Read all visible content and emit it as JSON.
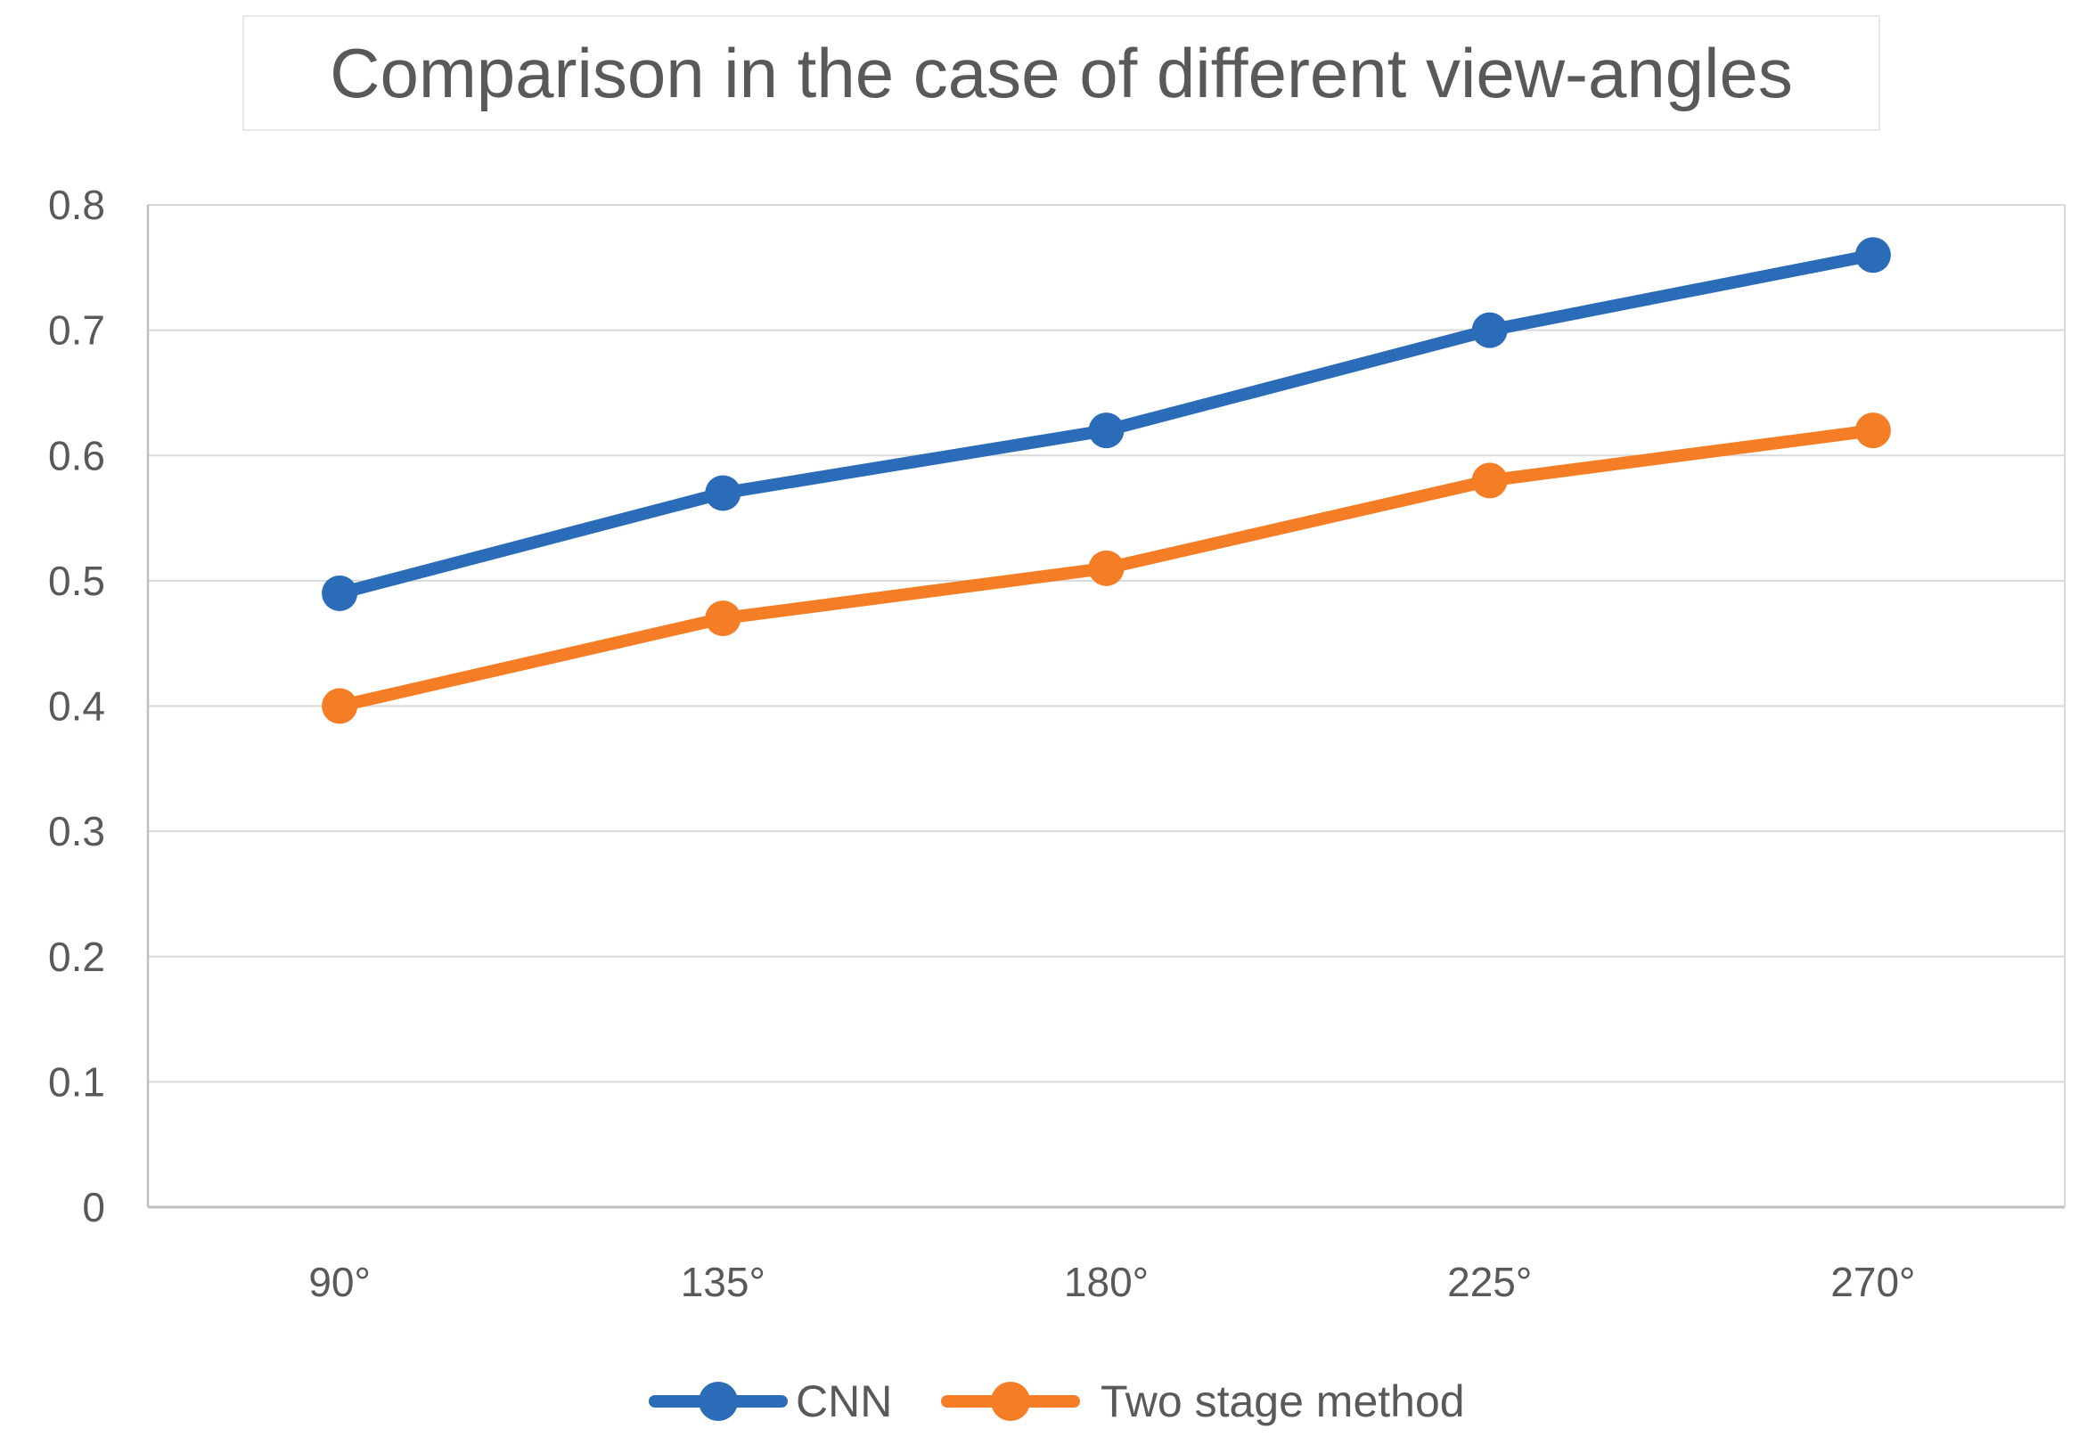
{
  "chart_data": {
    "type": "line",
    "title": "Comparison in the case of different view-angles",
    "categories": [
      "90°",
      "135°",
      "180°",
      "225°",
      "270°"
    ],
    "series": [
      {
        "name": "CNN",
        "color": "#2a6cb8",
        "values": [
          0.49,
          0.57,
          0.62,
          0.7,
          0.76
        ]
      },
      {
        "name": "Two stage method",
        "color": "#f57d25",
        "values": [
          0.4,
          0.47,
          0.51,
          0.58,
          0.62
        ]
      }
    ],
    "xlabel": "",
    "ylabel": "",
    "ylim": [
      0,
      0.8
    ],
    "ytick_step": 0.1,
    "ytick_labels": [
      "0",
      "0.1",
      "0.2",
      "0.3",
      "0.4",
      "0.5",
      "0.6",
      "0.7",
      "0.8"
    ],
    "grid": "horizontal",
    "legend_position": "bottom"
  },
  "colors": {
    "text": "#595959",
    "gridline": "#d9d9d9",
    "axis_line": "#bfbfbf",
    "plot_border": "#d9d9d9",
    "title_border": "#e7e7e7"
  }
}
